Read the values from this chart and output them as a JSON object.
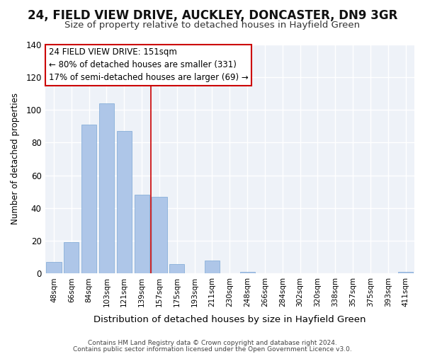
{
  "title": "24, FIELD VIEW DRIVE, AUCKLEY, DONCASTER, DN9 3GR",
  "subtitle": "Size of property relative to detached houses in Hayfield Green",
  "xlabel": "Distribution of detached houses by size in Hayfield Green",
  "ylabel": "Number of detached properties",
  "footer1": "Contains HM Land Registry data © Crown copyright and database right 2024.",
  "footer2": "Contains public sector information licensed under the Open Government Licence v3.0.",
  "annotation_line1": "24 FIELD VIEW DRIVE: 151sqm",
  "annotation_line2": "← 80% of detached houses are smaller (331)",
  "annotation_line3": "17% of semi-detached houses are larger (69) →",
  "bar_labels": [
    "48sqm",
    "66sqm",
    "84sqm",
    "103sqm",
    "121sqm",
    "139sqm",
    "157sqm",
    "175sqm",
    "193sqm",
    "211sqm",
    "230sqm",
    "248sqm",
    "266sqm",
    "284sqm",
    "302sqm",
    "320sqm",
    "338sqm",
    "357sqm",
    "375sqm",
    "393sqm",
    "411sqm"
  ],
  "bar_values": [
    7,
    19,
    91,
    104,
    87,
    48,
    47,
    6,
    0,
    8,
    0,
    1,
    0,
    0,
    0,
    0,
    0,
    0,
    0,
    0,
    1
  ],
  "bar_color": "#aec6e8",
  "bar_edge_color": "#7ba7d4",
  "vline_color": "#cc0000",
  "vline_x": 5.5,
  "ylim": [
    0,
    140
  ],
  "yticks": [
    0,
    20,
    40,
    60,
    80,
    100,
    120,
    140
  ],
  "background_color": "#ffffff",
  "plot_bg_color": "#eef2f8",
  "grid_color": "#ffffff",
  "title_fontsize": 12,
  "subtitle_fontsize": 9.5,
  "annotation_box_facecolor": "#ffffff",
  "annotation_border_color": "#cc0000",
  "annotation_fontsize": 8.5
}
